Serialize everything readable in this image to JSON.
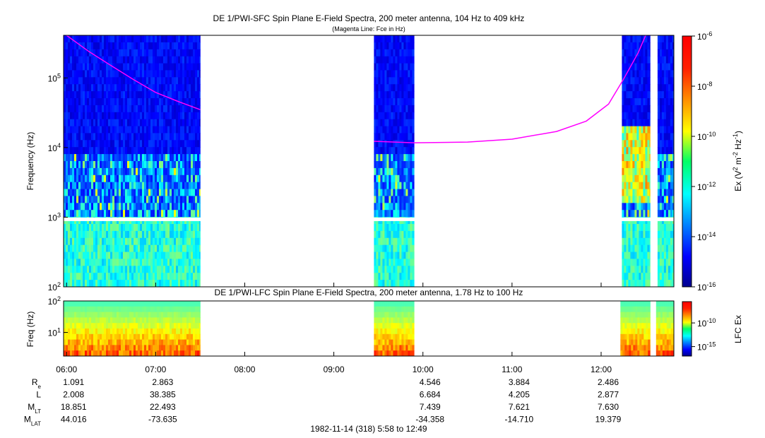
{
  "chart_data": [
    {
      "type": "heatmap",
      "title": "DE 1/PWI-SFC  Spin Plane E-Field Spectra, 200 meter antenna, 104 Hz to 409 kHz",
      "subtitle": "(Magenta Line: Fce in Hz)",
      "ylabel": "Frequency (Hz)",
      "yscale": "log",
      "ylim": [
        100,
        409000
      ],
      "yticks": [
        {
          "value": 100,
          "label": "10",
          "exp": "2"
        },
        {
          "value": 1000,
          "label": "10",
          "exp": "3"
        },
        {
          "value": 10000,
          "label": "10",
          "exp": "4"
        },
        {
          "value": 100000,
          "label": "10",
          "exp": "5"
        }
      ],
      "xlim": [
        "05:58",
        "12:49"
      ],
      "data_intervals": [
        [
          "05:58",
          "07:30"
        ],
        [
          "09:27",
          "09:54"
        ],
        [
          "12:14",
          "12:33"
        ],
        [
          "12:38",
          "12:49"
        ]
      ],
      "colorbar": {
        "label": "Ex (V",
        "label_sup1": "2",
        "label_mid": " m",
        "label_sup2": "-2",
        "label_mid2": " Hz",
        "label_sup3": "-1",
        "label_end": ")",
        "scale": "log",
        "range": [
          1e-16,
          1e-06
        ],
        "ticks": [
          {
            "value": 1e-06,
            "label": "10",
            "exp": "-6"
          },
          {
            "value": 1e-08,
            "label": "10",
            "exp": "-8"
          },
          {
            "value": 1e-10,
            "label": "10",
            "exp": "-10"
          },
          {
            "value": 1e-12,
            "label": "10",
            "exp": "-12"
          },
          {
            "value": 1e-14,
            "label": "10",
            "exp": "-14"
          },
          {
            "value": 1e-16,
            "label": "10",
            "exp": "-16"
          }
        ]
      },
      "series": [
        {
          "name": "Fce",
          "color": "#ff00ff",
          "points": [
            [
              "06:00",
              409000
            ],
            [
              "06:15",
              240000
            ],
            [
              "06:30",
              150000
            ],
            [
              "06:45",
              95000
            ],
            [
              "07:00",
              62000
            ],
            [
              "07:15",
              46000
            ],
            [
              "07:30",
              35000
            ],
            [
              "09:27",
              12300
            ],
            [
              "09:54",
              11700
            ],
            [
              "10:30",
              12000
            ],
            [
              "11:00",
              13200
            ],
            [
              "11:30",
              17000
            ],
            [
              "11:50",
              24000
            ],
            [
              "12:05",
              42000
            ],
            [
              "12:15",
              95000
            ],
            [
              "12:25",
              230000
            ],
            [
              "12:30",
              409000
            ]
          ]
        }
      ]
    },
    {
      "type": "heatmap",
      "title": "DE 1/PWI-LFC  Spin Plane E-Field Spectra, 200 meter antenna, 1.78 Hz to 100 Hz",
      "ylabel": "Freq (Hz)",
      "yscale": "log",
      "ylim": [
        1.78,
        100
      ],
      "yticks": [
        {
          "value": 10,
          "label": "10",
          "exp": "1"
        },
        {
          "value": 100,
          "label": "10",
          "exp": "2"
        }
      ],
      "data_intervals": [
        [
          "05:58",
          "07:30"
        ],
        [
          "09:27",
          "09:54"
        ],
        [
          "12:13",
          "12:33"
        ],
        [
          "12:37",
          "12:49"
        ]
      ],
      "colorbar": {
        "label": "LFC Ex",
        "scale": "log",
        "ticks": [
          {
            "value": 1e-10,
            "label": "10",
            "exp": "-10"
          },
          {
            "value": 1e-15,
            "label": "10",
            "exp": "-15"
          }
        ]
      }
    }
  ],
  "time_axis": {
    "ticks": [
      "06:00",
      "07:00",
      "08:00",
      "09:00",
      "10:00",
      "11:00",
      "12:00"
    ],
    "ephemeris": [
      {
        "name": "R",
        "sub": "e",
        "values": [
          "1.091",
          "2.863",
          "",
          "",
          "4.546",
          "3.884",
          "2.486"
        ]
      },
      {
        "name": "L",
        "sub": "",
        "values": [
          "2.008",
          "38.385",
          "",
          "",
          "6.684",
          "4.205",
          "2.877"
        ]
      },
      {
        "name": "M",
        "sub": "LT",
        "values": [
          "18.851",
          "22.493",
          "",
          "",
          "7.439",
          "7.621",
          "7.630"
        ]
      },
      {
        "name": "M",
        "sub": "LAT",
        "values": [
          "44.016",
          "-73.635",
          "",
          "",
          "-34.358",
          "-14.710",
          "19.379"
        ]
      }
    ],
    "footer": "1982-11-14 (318) 5:58 to 12:49"
  }
}
